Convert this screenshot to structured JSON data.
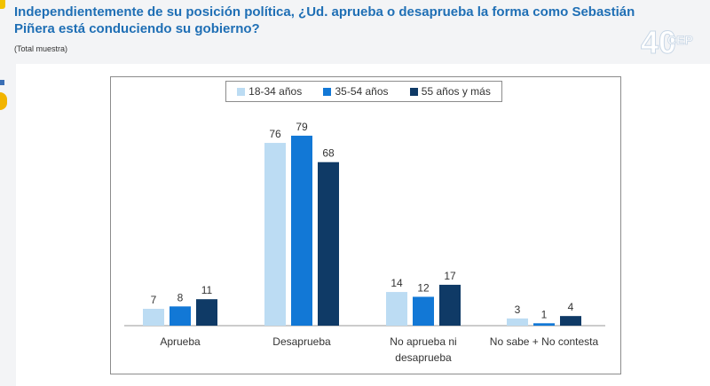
{
  "header": {
    "title": "Independientemente de su posición política, ¿Ud. aprueba o desaprueba la forma como Sebastián Piñera está conduciendo su gobierno?",
    "subtitle": "(Total muestra)",
    "logo_text": "CEP",
    "logo_number": "40"
  },
  "colors": {
    "series_18_34": "#bcdcf3",
    "series_35_54": "#1278d6",
    "series_55_plus": "#0f3a66",
    "title": "#1f6fb5"
  },
  "chart_data": {
    "type": "bar",
    "categories": [
      "Aprueba",
      "Desaprueba",
      "No aprueba ni desaprueba",
      "No sabe + No contesta"
    ],
    "category_lines": [
      [
        "Aprueba"
      ],
      [
        "Desaprueba"
      ],
      [
        "No aprueba ni",
        "desaprueba"
      ],
      [
        "No sabe + No contesta"
      ]
    ],
    "series": [
      {
        "name": "18-34 años",
        "values": [
          7,
          76,
          14,
          3
        ]
      },
      {
        "name": "35-54 años",
        "values": [
          8,
          79,
          12,
          1
        ]
      },
      {
        "name": "55 años y más",
        "values": [
          11,
          68,
          17,
          4
        ]
      }
    ],
    "ylim": [
      0,
      85
    ],
    "grid": false,
    "legend_position": "top-center"
  }
}
